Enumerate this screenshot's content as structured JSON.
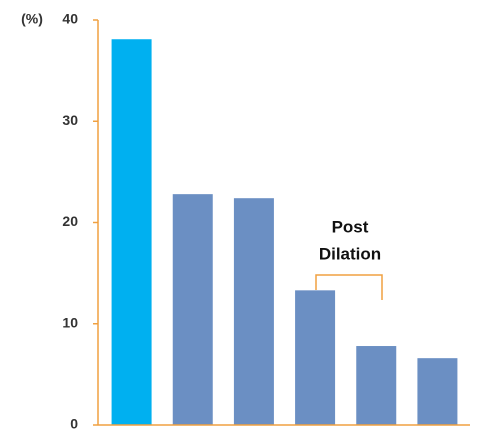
{
  "chart_data": {
    "type": "bar",
    "y_label": "(%)",
    "categories": [
      null,
      null,
      null,
      null,
      null,
      null
    ],
    "values": [
      38.1,
      22.8,
      22.4,
      13.3,
      7.8,
      6.6
    ],
    "colors": [
      "#00b0f0",
      "#6b8fc3",
      "#6b8fc3",
      "#6b8fc3",
      "#6b8fc3",
      "#6b8fc3"
    ],
    "ylim": [
      0,
      40
    ],
    "yticks": [
      0,
      10,
      20,
      30,
      40
    ],
    "annotation": [
      "Post",
      "Dilation"
    ]
  }
}
